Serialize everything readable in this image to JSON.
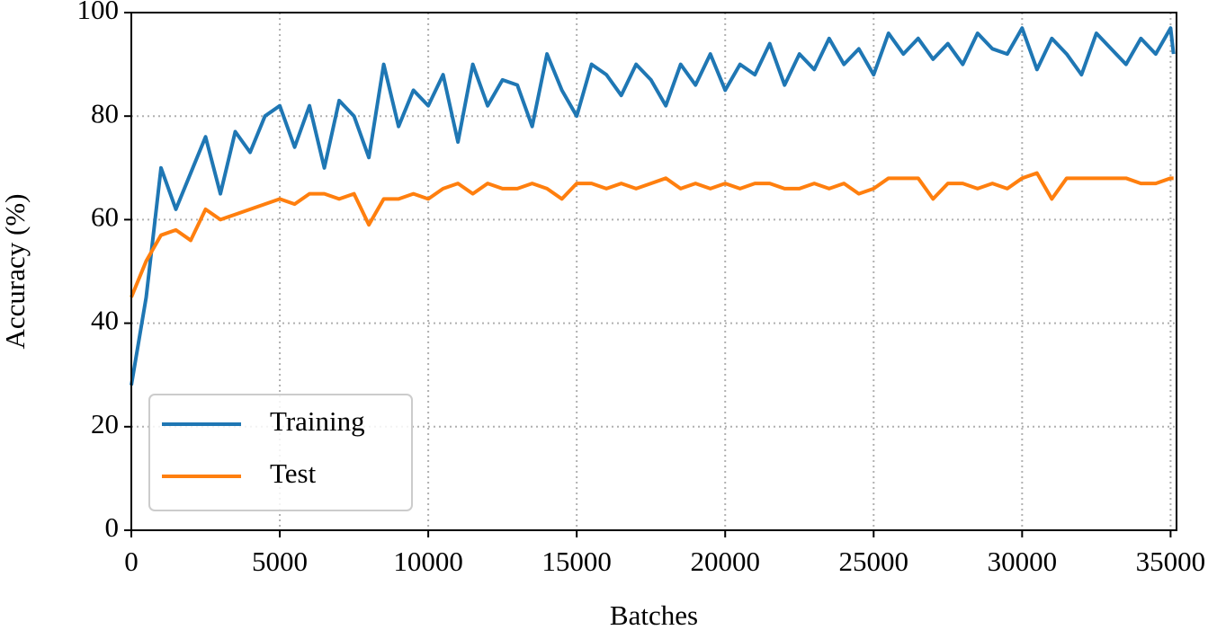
{
  "chart_data": {
    "type": "line",
    "xlabel": "Batches",
    "ylabel": "Accuracy (%)",
    "x": [
      0,
      500,
      1000,
      1500,
      2000,
      2500,
      3000,
      3500,
      4000,
      4500,
      5000,
      5500,
      6000,
      6500,
      7000,
      7500,
      8000,
      8500,
      9000,
      9500,
      10000,
      10500,
      11000,
      11500,
      12000,
      12500,
      13000,
      13500,
      14000,
      14500,
      15000,
      15500,
      16000,
      16500,
      17000,
      17500,
      18000,
      18500,
      19000,
      19500,
      20000,
      20500,
      21000,
      21500,
      22000,
      22500,
      23000,
      23500,
      24000,
      24500,
      25000,
      25500,
      26000,
      26500,
      27000,
      27500,
      28000,
      28500,
      29000,
      29500,
      30000,
      30500,
      31000,
      31500,
      32000,
      32500,
      33000,
      33500,
      34000,
      34500,
      35000,
      35100
    ],
    "series": [
      {
        "name": "Training",
        "color": "#1f77b4",
        "values": [
          28,
          45,
          70,
          62,
          69,
          76,
          65,
          77,
          73,
          80,
          82,
          74,
          82,
          70,
          83,
          80,
          72,
          90,
          78,
          85,
          82,
          88,
          75,
          90,
          82,
          87,
          86,
          78,
          92,
          85,
          80,
          90,
          88,
          84,
          90,
          87,
          82,
          90,
          86,
          92,
          85,
          90,
          88,
          94,
          86,
          92,
          89,
          95,
          90,
          93,
          88,
          96,
          92,
          95,
          91,
          94,
          90,
          96,
          93,
          92,
          97,
          89,
          95,
          92,
          88,
          96,
          93,
          90,
          95,
          92,
          97,
          92
        ]
      },
      {
        "name": "Test",
        "color": "#ff7f0e",
        "values": [
          45,
          52,
          57,
          58,
          56,
          62,
          60,
          61,
          62,
          63,
          64,
          63,
          65,
          65,
          64,
          65,
          59,
          64,
          64,
          65,
          64,
          66,
          67,
          65,
          67,
          66,
          66,
          67,
          66,
          64,
          67,
          67,
          66,
          67,
          66,
          67,
          68,
          66,
          67,
          66,
          67,
          66,
          67,
          67,
          66,
          66,
          67,
          66,
          67,
          65,
          66,
          68,
          68,
          68,
          64,
          67,
          67,
          66,
          67,
          66,
          68,
          69,
          64,
          68,
          68,
          68,
          68,
          68,
          67,
          67,
          68,
          68
        ]
      }
    ],
    "xlim": [
      0,
      35200
    ],
    "ylim": [
      0,
      100
    ],
    "xticks": [
      0,
      5000,
      10000,
      15000,
      20000,
      25000,
      30000,
      35000
    ],
    "yticks": [
      0,
      20,
      40,
      60,
      80,
      100
    ],
    "grid": true,
    "legend": "lower left"
  }
}
